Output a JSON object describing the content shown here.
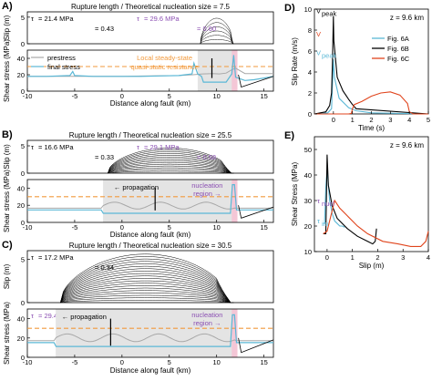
{
  "panel_labels": [
    "A)",
    "B)",
    "C)",
    "D)",
    "E)"
  ],
  "chart_data": [
    {
      "panel": "A)",
      "type": "line",
      "title": "Rupture length / Theoretical nucleation size = 7.5",
      "xlabel": "Distance along fault (km)",
      "ylabel_top": "Slip (m)",
      "ylabel_bottom": "Shear stress (MPa)",
      "xlim": [
        -10,
        16
      ],
      "xticks": [
        "-10",
        "-5",
        "0",
        "5",
        "10",
        "15"
      ],
      "slip_ylim": [
        0,
        6
      ],
      "slip_yticks": [
        "0",
        "5"
      ],
      "stress_ylim": [
        0,
        50
      ],
      "stress_yticks": [
        "0",
        "20",
        "40"
      ],
      "tau_ini": "τ",
      "tau_ini_text": "= 21.4 MPa",
      "ratio_ini": "= 0.43",
      "tau_nucl": "τ",
      "tau_nucl_text": "= 29.6 MPa",
      "ratio_nucl": "= 0.60",
      "legend": [
        "prestress",
        "final stress"
      ],
      "annotation": "Local steady-state quasi-static resistance",
      "quasi_static_level": 30,
      "nucleation_band": [
        8.0,
        12.0
      ],
      "pink_band": [
        11.6,
        12.2
      ],
      "slip_extent": [
        8.3,
        11.8
      ],
      "slip_max": 4.8,
      "prestress": {
        "x": [
          -10,
          -5,
          0,
          3,
          6,
          7.5,
          8.5,
          9.6,
          10.3,
          11,
          11.6,
          12.0,
          13,
          14,
          15,
          16
        ],
        "y": [
          18,
          18,
          18,
          18.5,
          19,
          20,
          21,
          21.5,
          21,
          22,
          26,
          28,
          21.5,
          21.4,
          21.4,
          21.4
        ]
      },
      "final_stress": {
        "x": [
          -10,
          -8,
          -5.5,
          -5.2,
          -5,
          -3,
          0,
          2,
          4,
          6,
          7.4,
          7.6,
          8,
          8.4,
          8.6,
          9,
          10,
          11,
          11.6,
          11.8,
          12.0,
          13,
          14,
          15,
          16
        ],
        "y": [
          18,
          18,
          19,
          24,
          19,
          18,
          18,
          18,
          18.5,
          19,
          21,
          34,
          21,
          18,
          11,
          11,
          11,
          11,
          21,
          44,
          17,
          13,
          14,
          16,
          18
        ]
      },
      "black_spike": {
        "x": [
          9.5,
          9.5
        ],
        "y": [
          16,
          40
        ]
      }
    },
    {
      "panel": "B)",
      "type": "line",
      "title": "Rupture length / Theoretical nucleation size = 25.5",
      "xlabel": "Distance along fault (km)",
      "ylabel_top": "Slip (m)",
      "ylabel_bottom": "Shear stress (MPa)",
      "xlim": [
        -10,
        16
      ],
      "xticks": [
        "-10",
        "-5",
        "0",
        "5",
        "10",
        "15"
      ],
      "slip_ylim": [
        0,
        6
      ],
      "slip_yticks": [
        "0",
        "5"
      ],
      "stress_ylim": [
        0,
        50
      ],
      "stress_yticks": [
        "0",
        "20",
        "40"
      ],
      "tau_ini": "τ",
      "tau_ini_text": "= 16.6 MPa",
      "ratio_ini": "= 0.33",
      "tau_nucl": "τ",
      "tau_nucl_text": "= 29.1 MPa",
      "ratio_nucl": "= 0.58",
      "annotation_prop": "← propagation",
      "annotation_nucl": "nucleation region",
      "quasi_static_level": 30,
      "nucleation_band": [
        -2.0,
        12.0
      ],
      "pink_band": [
        11.6,
        12.2
      ],
      "slip_extent": [
        -1.5,
        11.8
      ],
      "slip_max": 4.6,
      "black_spike": {
        "x": [
          3.5,
          3.5
        ],
        "y": [
          14,
          40
        ]
      }
    },
    {
      "panel": "C)",
      "type": "line",
      "title": "",
      "xlabel": "Distance along fault (km)",
      "ylabel_top": "Slip (m)",
      "ylabel_bottom": "Shear stress (MPa)",
      "xlim": [
        -10,
        16
      ],
      "xticks": [
        "-10",
        "-5",
        "0",
        "5",
        "10",
        "15"
      ],
      "slip_ylim": [
        0,
        6
      ],
      "slip_yticks": [
        "0",
        "5"
      ],
      "stress_ylim": [
        0,
        50
      ],
      "stress_yticks": [
        "0",
        "20",
        "40"
      ],
      "header": "Rupture length / Theoretical nucleation size = 30.5",
      "tau_ini": "τ",
      "tau_ini_text": "= 17.2 MPa",
      "ratio_ini": "= 0.34",
      "tau_nucl": "τ",
      "tau_nucl_text": "= 29.4 MPa",
      "ratio_nucl": "= 0.60",
      "annotation_prop": "← propagation",
      "annotation_nucl": "nucleation region",
      "quasi_static_level": 30,
      "nucleation_band": [
        -7.0,
        12.0
      ],
      "pink_band": [
        11.6,
        12.2
      ],
      "slip_extent": [
        -6.5,
        11.8
      ],
      "slip_max": 5.6,
      "black_spike": {
        "x": [
          -1.2,
          -1.2
        ],
        "y": [
          12,
          40
        ]
      }
    },
    {
      "panel": "D)",
      "type": "line",
      "title": "z = 9.6 km",
      "xlabel": "Time (s)",
      "ylabel": "Slip Rate (m/s)",
      "xlim": [
        -1,
        5
      ],
      "xticks": [
        "0",
        "1",
        "2",
        "3",
        "4",
        "5"
      ],
      "ylim": [
        0,
        10
      ],
      "yticks": [
        "0",
        "2",
        "4",
        "6",
        "8",
        "10"
      ],
      "legend": [
        "Fig. 6A",
        "Fig. 6B",
        "Fig. 6C"
      ],
      "legend_colors": [
        "#5bb8d6",
        "#000000",
        "#e0441c"
      ],
      "vpeak_label": "V",
      "vpeak_sub": "peak",
      "series": [
        {
          "name": "Fig. 6A",
          "x": [
            -1,
            -0.3,
            -0.1,
            0,
            0.05,
            0.3,
            0.8,
            1.2,
            2,
            5
          ],
          "y": [
            0,
            0.1,
            0.5,
            5.2,
            3.5,
            1.5,
            0.6,
            0.3,
            0.1,
            0
          ]
        },
        {
          "name": "Fig. 6B",
          "x": [
            -1,
            -0.4,
            -0.2,
            -0.1,
            -0.05,
            0,
            0.02,
            0.2,
            0.5,
            0.8,
            1.0,
            1.2,
            5
          ],
          "y": [
            0,
            0.2,
            0.8,
            2,
            5,
            9.3,
            7,
            3.5,
            2.2,
            1.4,
            0.9,
            0.5,
            0
          ]
        },
        {
          "name": "Fig. 6C",
          "x": [
            -1,
            0.8,
            0.95,
            1.0,
            1.1,
            1.5,
            2,
            2.5,
            3,
            3.5,
            3.9,
            4.0,
            4.2,
            5
          ],
          "y": [
            0,
            0,
            0.05,
            0.5,
            0.9,
            1.2,
            1.7,
            2.0,
            2.1,
            1.8,
            1.0,
            0.2,
            0,
            0
          ]
        }
      ]
    },
    {
      "panel": "E)",
      "type": "line",
      "title": "z = 9.6 km",
      "xlabel": "Slip (m)",
      "ylabel": "Shear Stress (MPa)",
      "xlim": [
        -0.5,
        4
      ],
      "xticks": [
        "0",
        "1",
        "2",
        "3",
        "4"
      ],
      "ylim": [
        10,
        55
      ],
      "yticks": [
        "10",
        "20",
        "30",
        "40",
        "50"
      ],
      "tau_ini_label": "τ",
      "tau_ini_sub": "ini",
      "tau_nucl_label": "τ",
      "tau_nucl_sub": "nucl",
      "series": [
        {
          "name": "Fig. 6A",
          "x": [
            -0.15,
            -0.1,
            -0.05,
            0,
            0.1,
            0.2,
            0.3,
            0.4,
            0.5,
            0.6,
            0.7
          ],
          "y": [
            21,
            21,
            35,
            42,
            30,
            25,
            22,
            21,
            20,
            20,
            19.5
          ]
        },
        {
          "name": "Fig. 6B",
          "x": [
            -0.15,
            -0.05,
            0,
            0.05,
            0.2,
            0.4,
            0.8,
            1.2,
            1.6,
            1.8,
            1.9,
            1.95
          ],
          "y": [
            17,
            17,
            48,
            36,
            28,
            23,
            19,
            16,
            14,
            13,
            14,
            19
          ]
        },
        {
          "name": "Fig. 6C",
          "x": [
            -0.15,
            0,
            0.3,
            0.5,
            0.8,
            1.2,
            1.6,
            2.2,
            2.8,
            3.3,
            3.7,
            3.9,
            4.0
          ],
          "y": [
            17,
            18,
            30,
            27,
            24,
            20,
            17,
            14,
            13,
            12,
            12,
            14,
            18
          ]
        }
      ]
    }
  ]
}
